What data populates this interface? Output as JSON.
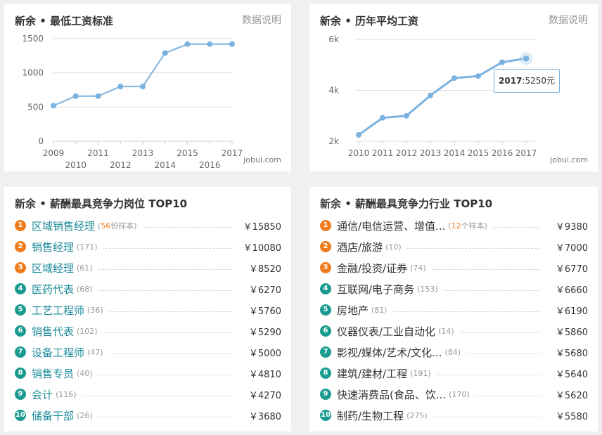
{
  "min_wage_card": {
    "title": "新余 • 最低工资标准",
    "link": "数据说明",
    "watermark": "jobui.com"
  },
  "avg_wage_card": {
    "title": "新余 • 历年平均工资",
    "link": "数据说明",
    "watermark": "jobui.com",
    "tooltip_year": "2017",
    "tooltip_value": ":5250元"
  },
  "chart_data": [
    {
      "type": "line",
      "x": [
        2009,
        2010,
        2011,
        2012,
        2013,
        2014,
        2015,
        2016,
        2017
      ],
      "values": [
        520,
        660,
        660,
        800,
        800,
        1290,
        1420,
        1420,
        1420
      ],
      "ylim": [
        0,
        1500
      ],
      "yticks": [
        "0",
        "500",
        "1000",
        "1500"
      ],
      "xticks_top": [
        "2009",
        "2011",
        "2013",
        "2015",
        "2017"
      ],
      "xticks_bottom": [
        "2010",
        "2012",
        "2014",
        "2016"
      ],
      "color": "#7ab2e0",
      "grid": true
    },
    {
      "type": "line",
      "x": [
        2010,
        2011,
        2012,
        2013,
        2014,
        2015,
        2016,
        2017
      ],
      "values": [
        2250,
        2920,
        3000,
        3800,
        4480,
        4560,
        5100,
        5250
      ],
      "ylim": [
        2000,
        6000
      ],
      "yticks": [
        "2k",
        "4k",
        "6k"
      ],
      "xticks": [
        "2010",
        "2011",
        "2012",
        "2013",
        "2014",
        "2015",
        "2016",
        "2017"
      ],
      "color": "#7ab2e0",
      "grid": true,
      "highlight_index": 7
    }
  ],
  "jobs_card": {
    "title": "新余 • 薪酬最具竞争力岗位 TOP10",
    "items": [
      {
        "rank": "1",
        "name": "区域销售经理",
        "count_hl": "56",
        "count_suffix": "份样本)",
        "count_prefix": "(",
        "value": "￥15850"
      },
      {
        "rank": "2",
        "name": "销售经理",
        "count": "(171)",
        "value": "￥10080"
      },
      {
        "rank": "3",
        "name": "区域经理",
        "count": "(61)",
        "value": "￥8520"
      },
      {
        "rank": "4",
        "name": "医药代表",
        "count": "(68)",
        "value": "￥6270"
      },
      {
        "rank": "5",
        "name": "工艺工程师",
        "count": "(36)",
        "value": "￥5760"
      },
      {
        "rank": "6",
        "name": "销售代表",
        "count": "(102)",
        "value": "￥5290"
      },
      {
        "rank": "7",
        "name": "设备工程师",
        "count": "(47)",
        "value": "￥5000"
      },
      {
        "rank": "8",
        "name": "销售专员",
        "count": "(40)",
        "value": "￥4810"
      },
      {
        "rank": "9",
        "name": "会计",
        "count": "(116)",
        "value": "￥4270"
      },
      {
        "rank": "10",
        "name": "储备干部",
        "count": "(26)",
        "value": "￥3680"
      }
    ]
  },
  "industry_card": {
    "title": "新余 • 薪酬最具竞争力行业 TOP10",
    "items": [
      {
        "rank": "1",
        "name": "通信/电信运营、增值...",
        "count_hl": "12",
        "count_suffix": "个样本)",
        "count_prefix": "(",
        "value": "￥9380"
      },
      {
        "rank": "2",
        "name": "酒店/旅游",
        "count": "(10)",
        "value": "￥7000"
      },
      {
        "rank": "3",
        "name": "金融/投资/证券",
        "count": "(74)",
        "value": "￥6770"
      },
      {
        "rank": "4",
        "name": "互联网/电子商务",
        "count": "(153)",
        "value": "￥6660"
      },
      {
        "rank": "5",
        "name": "房地产",
        "count": "(81)",
        "value": "￥6190"
      },
      {
        "rank": "6",
        "name": "仪器仪表/工业自动化",
        "count": "(14)",
        "value": "￥5860"
      },
      {
        "rank": "7",
        "name": "影视/媒体/艺术/文化...",
        "count": "(84)",
        "value": "￥5680"
      },
      {
        "rank": "8",
        "name": "建筑/建材/工程",
        "count": "(191)",
        "value": "￥5640"
      },
      {
        "rank": "9",
        "name": "快速消费品(食品、饮...",
        "count": "(170)",
        "value": "￥5620"
      },
      {
        "rank": "10",
        "name": "制药/生物工程",
        "count": "(275)",
        "value": "￥5580"
      }
    ]
  }
}
